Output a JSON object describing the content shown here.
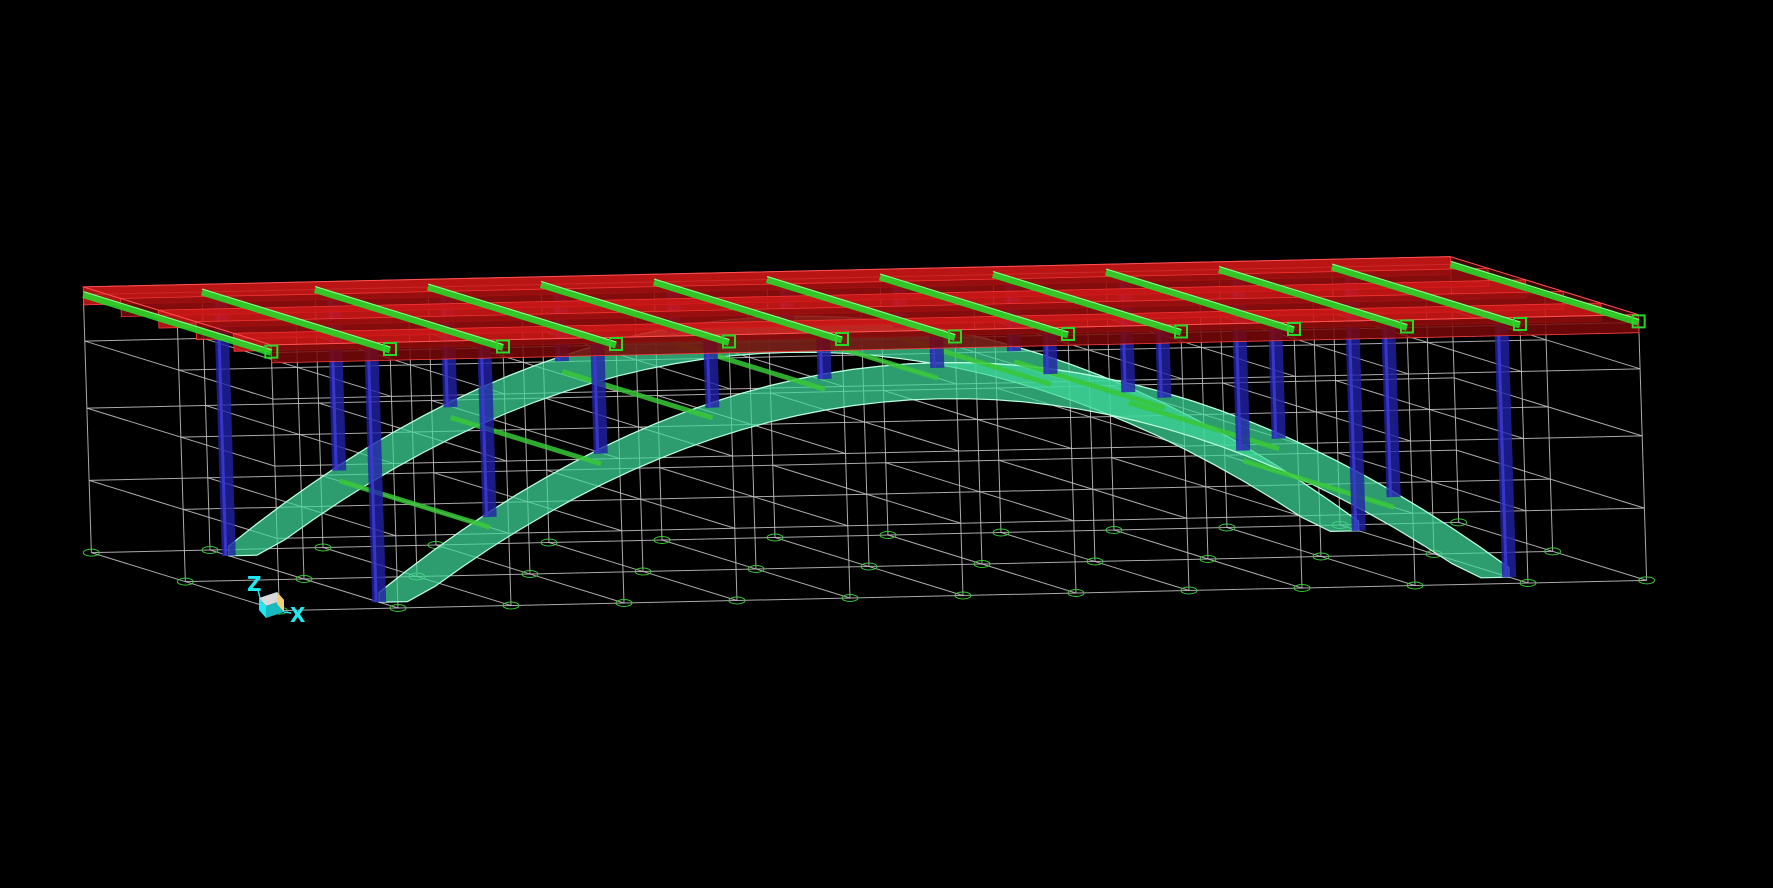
{
  "viewport": {
    "background": "#000000"
  },
  "model": {
    "colors": {
      "grid": "#bdbdbd",
      "deck": "#d01818",
      "deck_dark": "#7a0808",
      "crossbeam": "#28d828",
      "column": "#2222a8",
      "column_light": "#3a3ad0",
      "arch_fill": "#3fd89a",
      "arch_edge": "#b8ffe0",
      "support": "#38c838"
    },
    "deck_bays": 10,
    "grid_bays": 10,
    "support_icon": "pin-support-icon"
  },
  "axes": {
    "z_label": "Z",
    "x_label": "X",
    "color": "#20e8f0",
    "icon": "axis-triad-icon"
  }
}
